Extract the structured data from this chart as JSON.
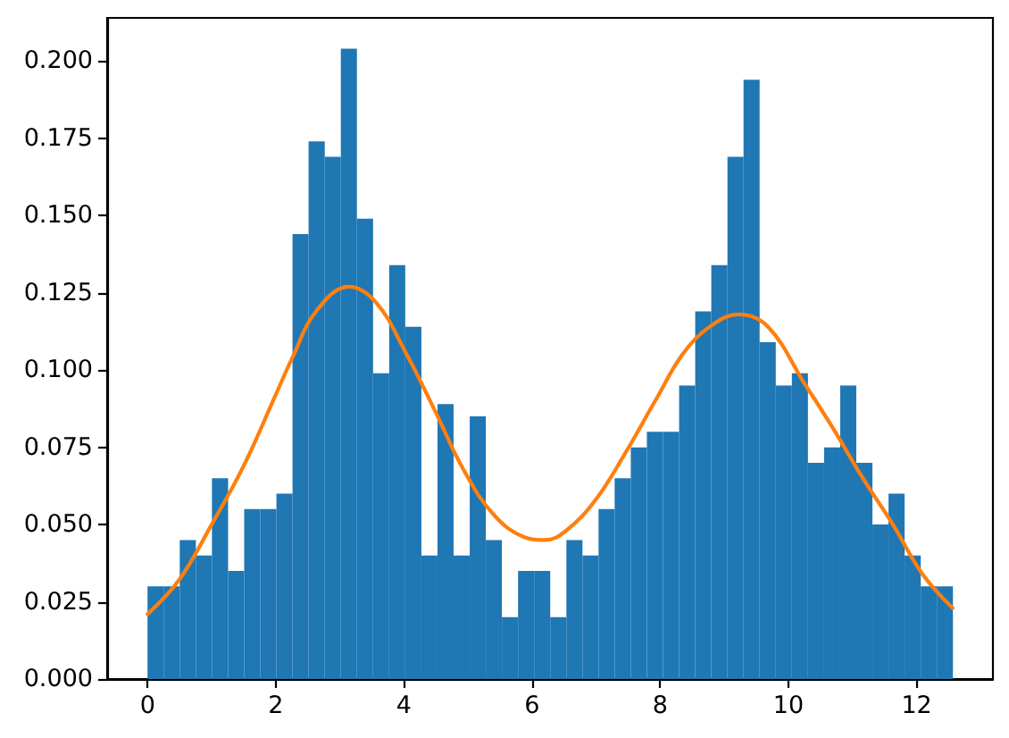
{
  "chart_data": {
    "type": "histogram",
    "bins": [
      0,
      0.251,
      0.503,
      0.754,
      1.005,
      1.257,
      1.508,
      1.759,
      2.011,
      2.262,
      2.513,
      2.765,
      3.016,
      3.267,
      3.519,
      3.77,
      4.021,
      4.273,
      4.524,
      4.775,
      5.027,
      5.278,
      5.529,
      5.781,
      6.032,
      6.283,
      6.535,
      6.786,
      7.037,
      7.288,
      7.54,
      7.791,
      8.042,
      8.294,
      8.545,
      8.796,
      9.048,
      9.299,
      9.55,
      9.802,
      10.053,
      10.304,
      10.556,
      10.807,
      11.058,
      11.31,
      11.561,
      11.812,
      12.064,
      12.315,
      12.566
    ],
    "series": [
      {
        "type": "histogram",
        "color": "#1f77b4",
        "values": [
          0.03,
          0.03,
          0.045,
          0.04,
          0.065,
          0.035,
          0.055,
          0.055,
          0.06,
          0.144,
          0.174,
          0.169,
          0.204,
          0.149,
          0.099,
          0.134,
          0.114,
          0.04,
          0.089,
          0.04,
          0.085,
          0.045,
          0.02,
          0.035,
          0.035,
          0.02,
          0.045,
          0.04,
          0.055,
          0.065,
          0.075,
          0.08,
          0.08,
          0.095,
          0.119,
          0.134,
          0.169,
          0.194,
          0.109,
          0.095,
          0.099,
          0.07,
          0.075,
          0.095,
          0.07,
          0.05,
          0.06,
          0.04,
          0.03,
          0.03
        ]
      },
      {
        "type": "line",
        "color": "#ff7f0e",
        "marker": "none",
        "line_style": "solid",
        "x": [
          0,
          0.49,
          1.0,
          1.5,
          2.0,
          2.26,
          2.63,
          3.14,
          3.56,
          4.02,
          4.48,
          4.95,
          5.41,
          5.87,
          6.2,
          6.53,
          6.99,
          7.45,
          7.92,
          8.38,
          8.84,
          9.22,
          9.68,
          10.24,
          10.7,
          11.16,
          11.63,
          12.09,
          12.56
        ],
        "values": [
          0.021,
          0.032,
          0.05,
          0.069,
          0.092,
          0.104,
          0.119,
          0.127,
          0.122,
          0.106,
          0.087,
          0.067,
          0.053,
          0.046,
          0.045,
          0.048,
          0.058,
          0.073,
          0.09,
          0.106,
          0.115,
          0.118,
          0.114,
          0.096,
          0.081,
          0.065,
          0.05,
          0.034,
          0.023
        ]
      }
    ],
    "xlim": [
      -0.63,
      13.19
    ],
    "xticks": [
      0,
      2,
      4,
      6,
      8,
      10,
      12
    ],
    "ylim": [
      0,
      0.214
    ],
    "yticks": [
      {
        "value": 0,
        "label": "0.000"
      },
      0.025,
      {
        "value": 0.05,
        "label": "0.050"
      },
      0.075,
      {
        "value": 0.1,
        "label": "0.100"
      },
      0.125,
      {
        "value": 0.15,
        "label": "0.150"
      },
      0.175,
      {
        "value": 0.2,
        "label": "0.200"
      }
    ],
    "grid": false
  }
}
